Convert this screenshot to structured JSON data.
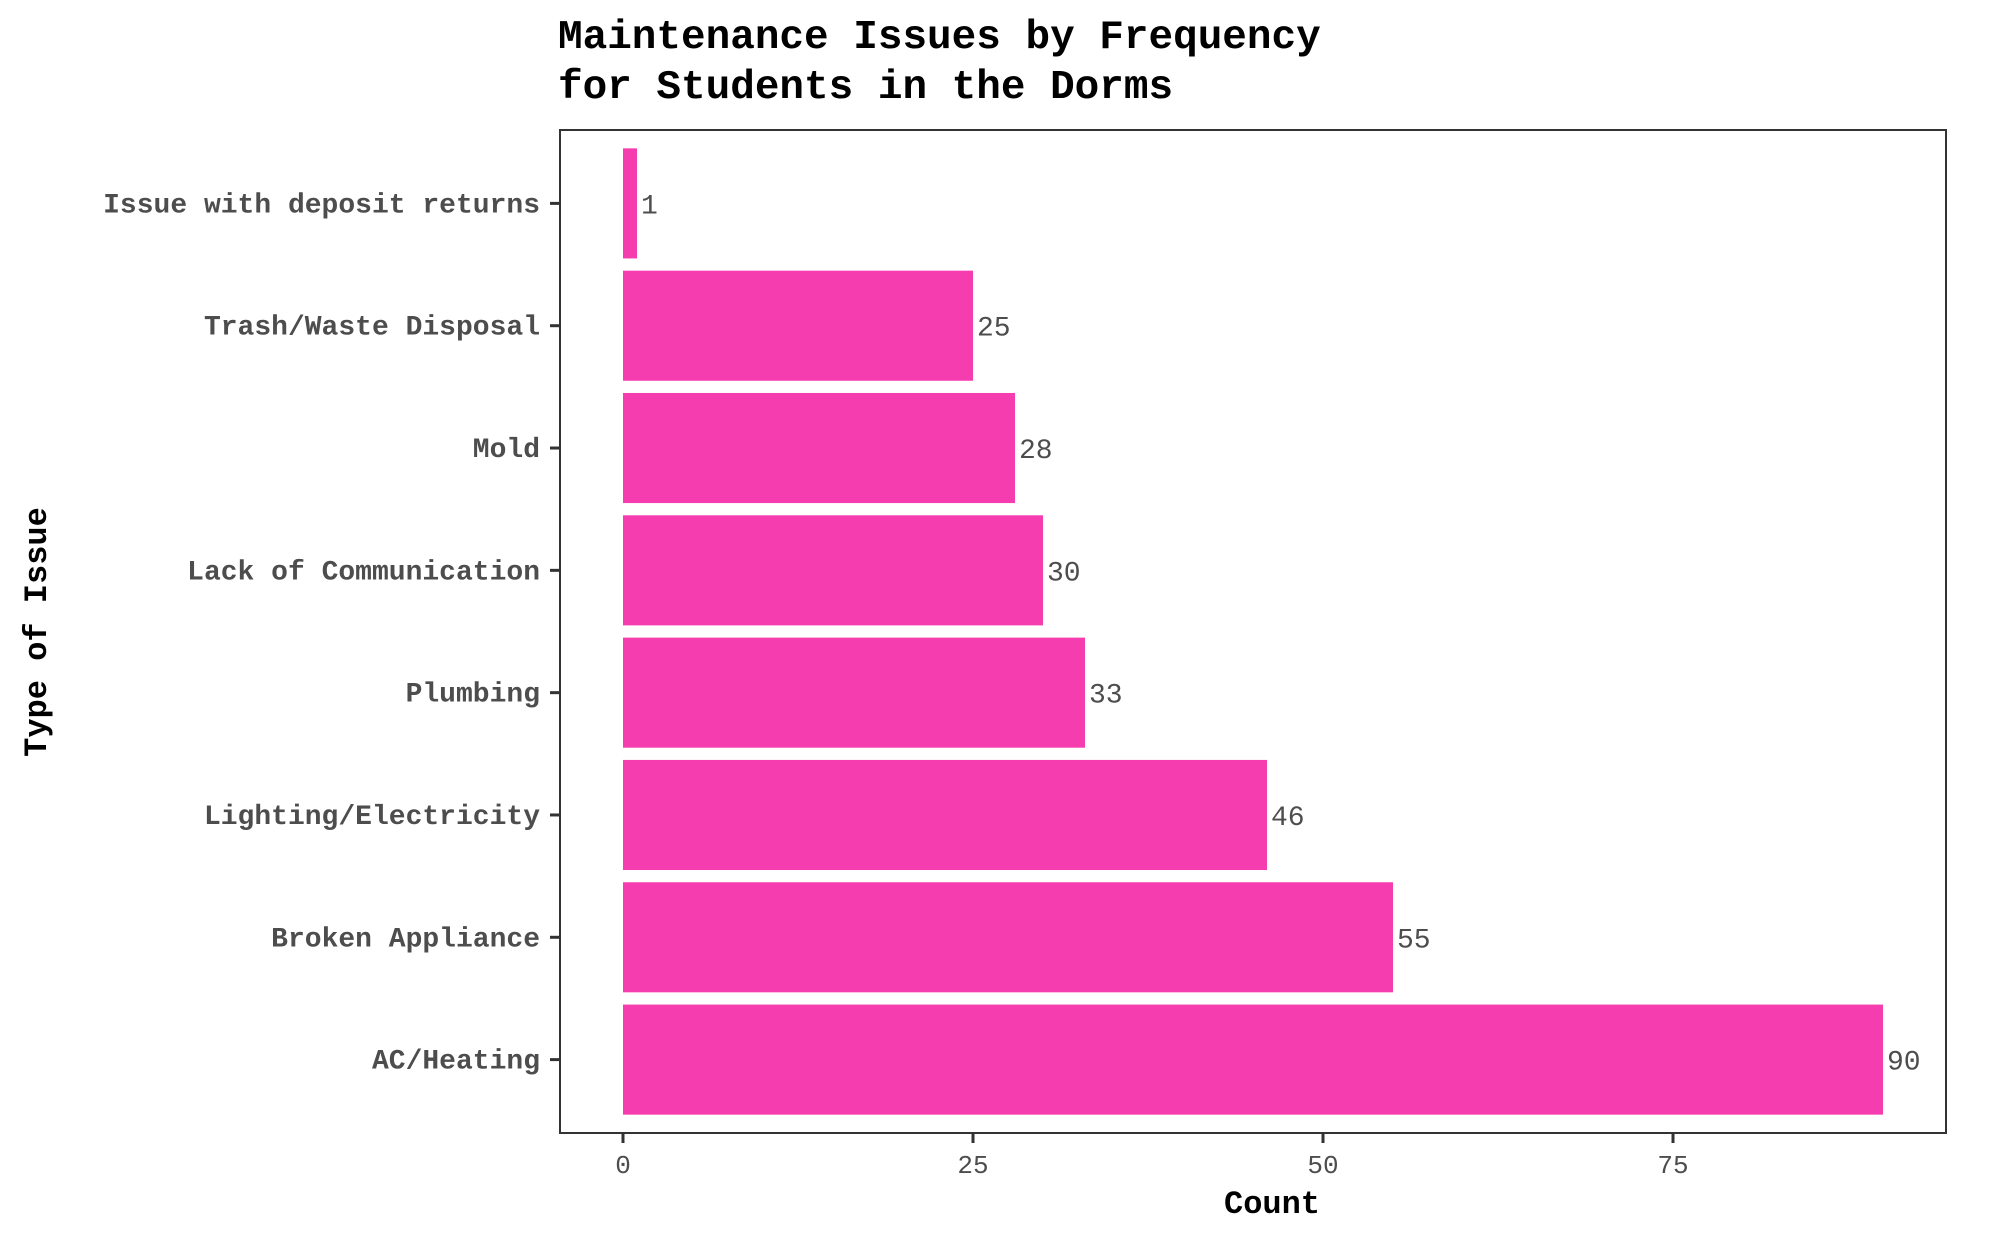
{
  "chart_data": {
    "type": "bar",
    "orientation": "horizontal",
    "title_lines": [
      "Maintenance Issues by Frequency",
      "for Students in the Dorms"
    ],
    "xlabel": "Count",
    "ylabel": "Type of Issue",
    "categories": [
      "Issue with deposit returns",
      "Trash/Waste Disposal",
      "Mold",
      "Lack of Communication",
      "Plumbing",
      "Lighting/Electricity",
      "Broken Appliance",
      "AC/Heating"
    ],
    "values": [
      1,
      25,
      28,
      30,
      33,
      46,
      55,
      90
    ],
    "value_labels": [
      "1",
      "25",
      "28",
      "30",
      "33",
      "46",
      "55",
      "90"
    ],
    "xlim": [
      -4.5,
      94.5
    ],
    "xticks": [
      0,
      25,
      50,
      75
    ],
    "xtick_labels": [
      "0",
      "25",
      "50",
      "75"
    ],
    "bar_color": "#f53daf",
    "grid": false
  }
}
